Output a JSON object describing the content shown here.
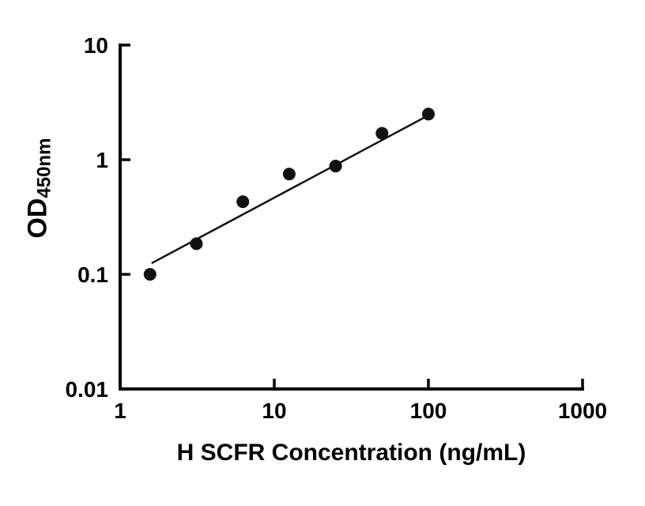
{
  "figure": {
    "background": "#ffffff",
    "foreground": "#000000"
  },
  "chart_data": {
    "type": "scatter",
    "title": "",
    "xlabel": "H SCFR Concentration (ng/mL)",
    "ylabel": "OD450nm",
    "ylabel_main": "OD",
    "ylabel_sub": "450nm",
    "x_scale": "log",
    "y_scale": "log",
    "xlim": [
      1,
      1000
    ],
    "ylim": [
      0.01,
      10
    ],
    "grid": false,
    "legend": "none",
    "xticks": {
      "values": [
        1,
        10,
        100,
        1000
      ],
      "labels": [
        "1",
        "10",
        "100",
        "1000"
      ]
    },
    "yticks": {
      "values": [
        0.01,
        0.1,
        1,
        10
      ],
      "labels": [
        "0.01",
        "0.1",
        "1",
        "10"
      ]
    },
    "series": [
      {
        "name": "fit-line",
        "type": "line",
        "color": "#111111",
        "points": [
          {
            "x": 1.6,
            "y": 0.125
          },
          {
            "x": 95,
            "y": 2.35
          }
        ]
      },
      {
        "name": "standards",
        "type": "scatter",
        "marker": "circle",
        "color": "#111111",
        "points": [
          {
            "x": 1.5625,
            "y": 0.1
          },
          {
            "x": 3.125,
            "y": 0.185
          },
          {
            "x": 6.25,
            "y": 0.43
          },
          {
            "x": 12.5,
            "y": 0.75
          },
          {
            "x": 25,
            "y": 0.88
          },
          {
            "x": 50,
            "y": 1.7
          },
          {
            "x": 100,
            "y": 2.5
          }
        ]
      }
    ]
  }
}
